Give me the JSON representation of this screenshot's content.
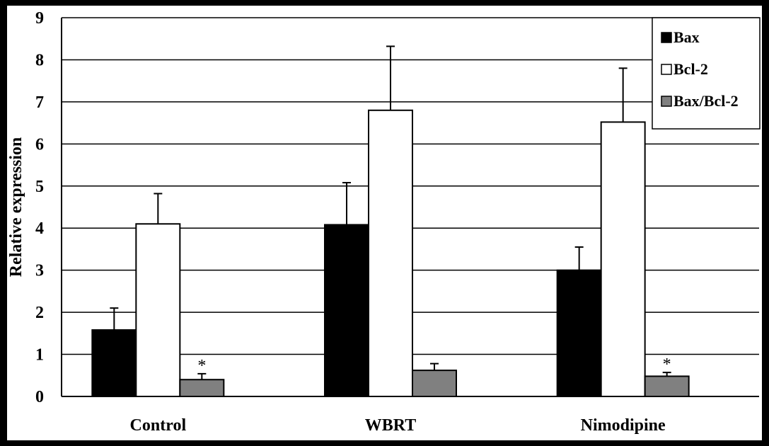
{
  "chart_data": {
    "type": "bar",
    "ylabel": "Relative expression",
    "ylim": [
      0,
      9
    ],
    "yticks": [
      "0",
      "1",
      "2",
      "3",
      "4",
      "5",
      "6",
      "7",
      "8",
      "9"
    ],
    "categories": [
      "Control",
      "WBRT",
      "Nimodipine"
    ],
    "grid": true,
    "legend_position": "top-right",
    "series": [
      {
        "name": "Bax",
        "color": "#000000",
        "values": [
          1.58,
          4.08,
          3.0
        ],
        "errors": [
          0.52,
          1.0,
          0.55
        ]
      },
      {
        "name": "Bcl-2",
        "color": "#ffffff",
        "values": [
          4.1,
          6.8,
          6.52
        ],
        "errors": [
          0.72,
          1.52,
          1.28
        ]
      },
      {
        "name": "Bax/Bcl-2",
        "color": "#808080",
        "values": [
          0.4,
          0.62,
          0.48
        ],
        "errors": [
          0.14,
          0.16,
          0.09
        ]
      }
    ],
    "annotations": [
      {
        "text": "*",
        "category": "Control",
        "series": "Bax/Bcl-2"
      },
      {
        "text": "*",
        "category": "Nimodipine",
        "series": "Bax/Bcl-2"
      }
    ]
  }
}
